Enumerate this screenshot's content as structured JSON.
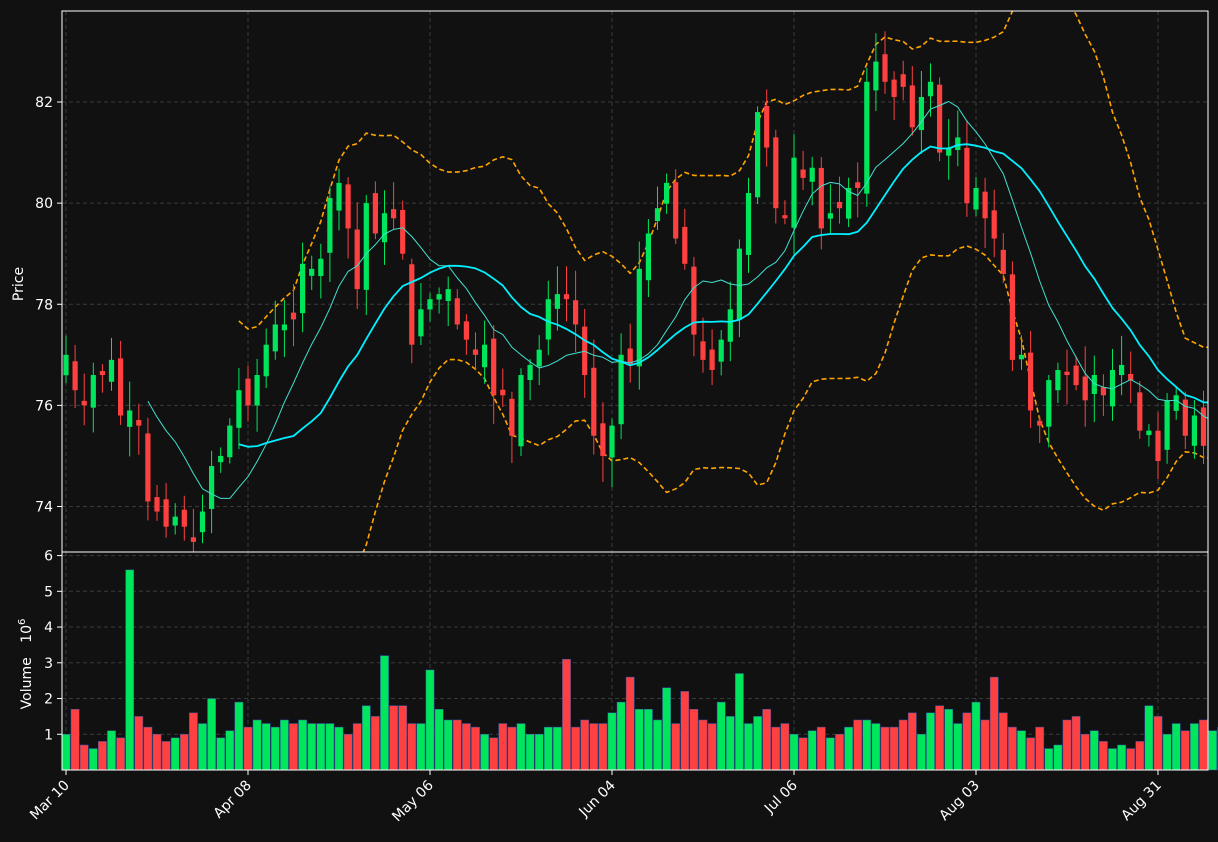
{
  "chart_data": [
    {
      "type": "candlestick",
      "ylabel": "Price",
      "ylim": [
        73.1,
        83.8
      ],
      "yticks": [
        "74",
        "76",
        "78",
        "80",
        "82"
      ],
      "grid": true,
      "colors": {
        "background": "#111111",
        "up": "#00e65c",
        "down": "#ff4040",
        "ma_fast": "#40e0d0",
        "ma_slow": "#00f0ff",
        "bollinger": "#ffa500"
      },
      "overlays": [
        "moving-average-fast",
        "moving-average-slow",
        "bollinger-upper",
        "bollinger-lower"
      ],
      "close_approx": [
        77.0,
        76.3,
        76.0,
        76.6,
        76.6,
        76.9,
        75.8,
        75.9,
        75.6,
        74.1,
        73.9,
        73.6,
        73.8,
        73.6,
        73.3,
        73.9,
        74.8,
        75.0,
        75.6,
        76.3,
        76.0,
        76.6,
        77.2,
        77.6,
        77.6,
        77.7,
        78.8,
        78.7,
        78.9,
        80.1,
        80.4,
        79.5,
        78.3,
        80.0,
        79.4,
        79.8,
        79.7,
        79.0,
        77.2,
        77.9,
        78.1,
        78.2,
        78.3,
        77.6,
        77.3,
        77.0,
        77.2,
        76.2,
        76.2,
        75.4,
        76.6,
        76.8,
        77.1,
        78.1,
        78.2,
        78.1,
        77.6,
        76.6,
        75.4,
        75.0,
        75.6,
        77.0,
        76.8,
        78.7,
        79.4,
        79.9,
        80.4,
        79.3,
        78.8,
        77.4,
        76.9,
        76.7,
        77.3,
        77.9,
        79.1,
        80.2,
        81.8,
        81.1,
        79.9,
        79.7,
        80.9,
        80.5,
        80.7,
        79.5,
        79.8,
        79.9,
        80.3,
        80.3,
        82.4,
        82.8,
        82.4,
        82.1,
        82.3,
        81.5,
        82.1,
        82.4,
        81.0,
        81.1,
        81.3,
        80.0,
        80.3,
        79.7,
        79.3,
        78.6,
        76.9,
        77.0,
        75.9,
        75.6,
        76.5,
        76.7,
        76.6,
        76.4,
        76.1,
        76.6,
        76.2,
        76.7,
        76.8,
        76.5,
        75.5,
        75.5,
        74.9,
        76.1,
        76.2,
        75.4,
        75.8,
        75.2,
        75.8,
        76.1
      ]
    },
    {
      "type": "bar",
      "ylabel": "Volume",
      "ylabel_exponent": "6",
      "ylim": [
        0.0,
        6.1
      ],
      "yticks": [
        "1",
        "2",
        "3",
        "4",
        "5",
        "6"
      ],
      "xticks": [
        "Mar 10",
        "Apr 08",
        "May 06",
        "Jun 04",
        "Jul 06",
        "Aug 03",
        "Aug 31"
      ],
      "grid": true,
      "volume_millions_approx": [
        1.0,
        1.7,
        0.7,
        0.6,
        0.8,
        1.1,
        0.9,
        5.6,
        1.5,
        1.2,
        1.0,
        0.8,
        0.9,
        1.0,
        1.6,
        1.3,
        2.0,
        0.9,
        1.1,
        1.9,
        1.2,
        1.4,
        1.3,
        1.2,
        1.4,
        1.3,
        1.4,
        1.3,
        1.3,
        1.3,
        1.2,
        1.0,
        1.3,
        1.8,
        1.5,
        3.2,
        1.8,
        1.8,
        1.3,
        1.3,
        2.8,
        1.7,
        1.4,
        1.4,
        1.3,
        1.2,
        1.0,
        0.9,
        1.3,
        1.2,
        1.3,
        1.0,
        1.0,
        1.2,
        1.2,
        3.1,
        1.2,
        1.4,
        1.3,
        1.3,
        1.6,
        1.9,
        2.6,
        1.7,
        1.7,
        1.4,
        2.3,
        1.3,
        2.2,
        1.7,
        1.4,
        1.3,
        1.9,
        1.5,
        2.7,
        1.3,
        1.5,
        1.7,
        1.2,
        1.3,
        1.0,
        0.9,
        1.1,
        1.2,
        0.9,
        1.0,
        1.2,
        1.4,
        1.4,
        1.3,
        1.2,
        1.2,
        1.4,
        1.6,
        1.0,
        1.6,
        1.8,
        1.7,
        1.3,
        1.6,
        1.9,
        1.4,
        2.6,
        1.6,
        1.2,
        1.1,
        0.9,
        1.2,
        0.6,
        0.7,
        1.4,
        1.5,
        1.0,
        1.1,
        0.8,
        0.6,
        0.7,
        0.6,
        0.8,
        1.8,
        1.5,
        1.0,
        1.3,
        1.1,
        1.3,
        1.4,
        1.1,
        1.2
      ]
    }
  ]
}
